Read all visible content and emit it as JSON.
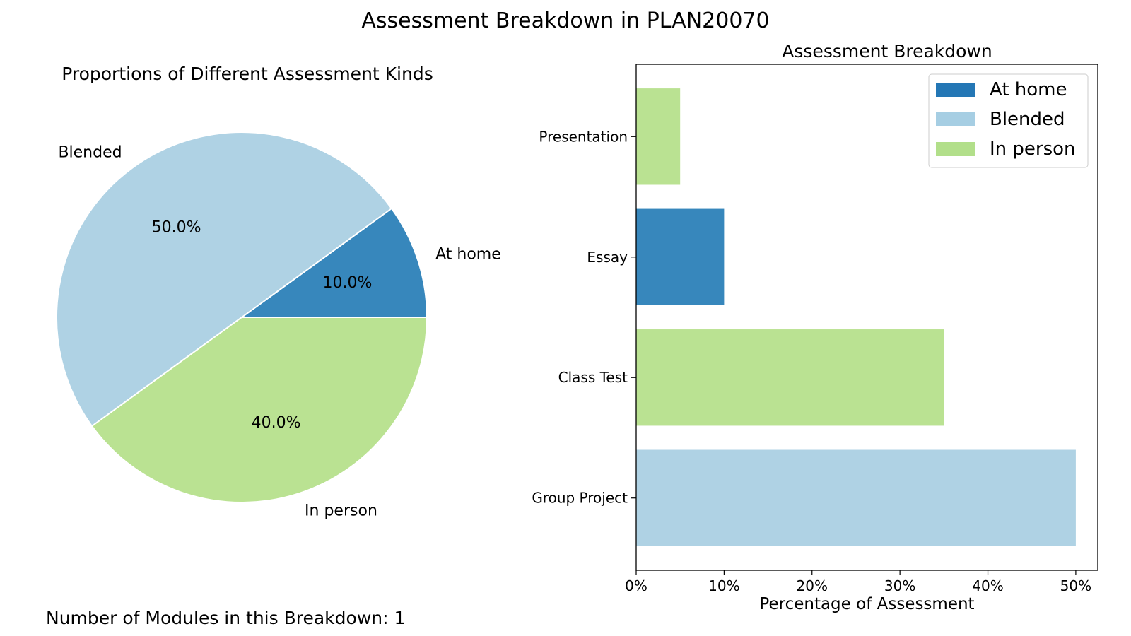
{
  "title": "Assessment Breakdown in PLAN20070",
  "footer_text": "Number of Modules in this Breakdown: 1",
  "colors": {
    "at_home": "#3787bc",
    "blended": "#afd2e4",
    "in_person": "#bae292"
  },
  "chart_data": [
    {
      "type": "pie",
      "title": "Proportions of Different Assessment Kinds",
      "labels": [
        "At home",
        "Blended",
        "In person"
      ],
      "values": [
        10.0,
        50.0,
        40.0
      ],
      "pct_labels": [
        "10.0%",
        "50.0%",
        "40.0%"
      ],
      "colors": [
        "#3787bc",
        "#afd2e4",
        "#bae292"
      ]
    },
    {
      "type": "bar",
      "orientation": "horizontal",
      "title": "Assessment Breakdown",
      "xlabel": "Percentage of Assessment",
      "ylabel": "",
      "categories": [
        "Group Project",
        "Class Test",
        "Essay",
        "Presentation"
      ],
      "values": [
        50,
        35,
        10,
        5
      ],
      "bar_kinds": [
        "Blended",
        "In person",
        "At home",
        "In person"
      ],
      "xlim": [
        0,
        52.5
      ],
      "xticks": [
        0,
        10,
        20,
        30,
        40,
        50
      ],
      "xtick_labels": [
        "0%",
        "10%",
        "20%",
        "30%",
        "40%",
        "50%"
      ],
      "grid": false,
      "legend": {
        "position": "top-right",
        "entries": [
          {
            "name": "At home",
            "color": "#2477b5"
          },
          {
            "name": "Blended",
            "color": "#a6cee3"
          },
          {
            "name": "In person",
            "color": "#b2df8a"
          }
        ]
      }
    }
  ]
}
